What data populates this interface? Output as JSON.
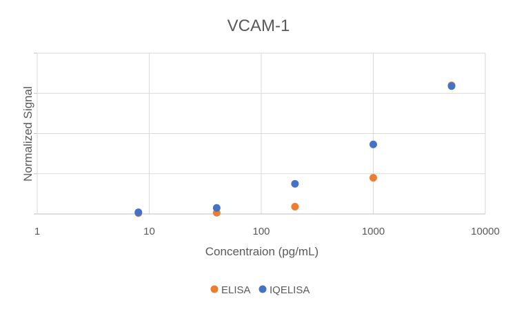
{
  "chart_data": {
    "type": "scatter",
    "title": "VCAM-1",
    "xlabel": "Concentraion (pg/mL)",
    "ylabel": "Normalized Signal",
    "x_scale": "log",
    "xlim": [
      1,
      10000
    ],
    "ylim": [
      0,
      4
    ],
    "x_ticks": [
      1,
      10,
      100,
      1000,
      10000
    ],
    "x_tick_labels": [
      "1",
      "10",
      "100",
      "1000",
      "10000"
    ],
    "y_gridlines": [
      0,
      1,
      2,
      3,
      4
    ],
    "grid": true,
    "legend_position": "bottom",
    "series": [
      {
        "name": "ELISA",
        "color": "#ED7D31",
        "x": [
          8,
          40,
          200,
          1000,
          5000
        ],
        "y": [
          0.02,
          0.03,
          0.18,
          0.9,
          3.2
        ]
      },
      {
        "name": "IQELISA",
        "color": "#4472C4",
        "x": [
          8,
          40,
          200,
          1000,
          5000
        ],
        "y": [
          0.04,
          0.15,
          0.75,
          1.73,
          3.18
        ]
      }
    ]
  }
}
